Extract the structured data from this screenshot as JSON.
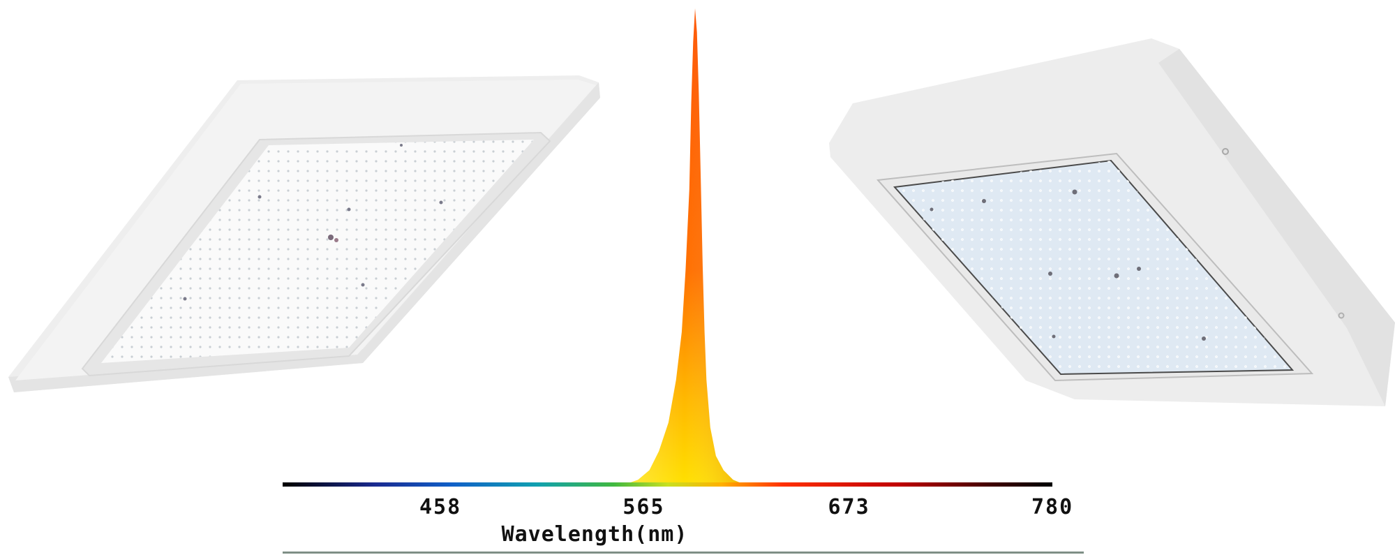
{
  "colors": {
    "background": "#ffffff",
    "panel_body": "#efefef",
    "panel_face_left": "#f8f9f8",
    "panel_face_right": "#dde8f2",
    "peak_top": "#ff5a00",
    "peak_base": "#ffe000",
    "footer_rule": "#7f8f86"
  },
  "icons": [
    "led-panel-light-left",
    "led-panel-light-right"
  ],
  "chart_data": {
    "type": "area",
    "title": "",
    "xlabel": "Wavelength(nm)",
    "ylabel": "",
    "xlim": [
      375,
      780
    ],
    "ylim": [
      0,
      1
    ],
    "x_ticks": [
      {
        "value": 458,
        "label": "458"
      },
      {
        "value": 565,
        "label": "565"
      },
      {
        "value": 673,
        "label": "673"
      },
      {
        "value": 780,
        "label": "780"
      }
    ],
    "grid": false,
    "legend": "none",
    "series": [
      {
        "x": [
          555,
          562,
          568,
          573,
          578,
          582,
          585,
          587,
          589,
          590,
          591,
          592,
          593,
          594,
          595,
          596,
          597,
          598,
          600,
          603,
          607,
          612,
          618
        ],
        "y": [
          0,
          0.01,
          0.03,
          0.07,
          0.13,
          0.22,
          0.32,
          0.45,
          0.62,
          0.8,
          0.93,
          1.0,
          0.95,
          0.82,
          0.64,
          0.46,
          0.32,
          0.22,
          0.12,
          0.06,
          0.03,
          0.01,
          0
        ]
      }
    ]
  }
}
